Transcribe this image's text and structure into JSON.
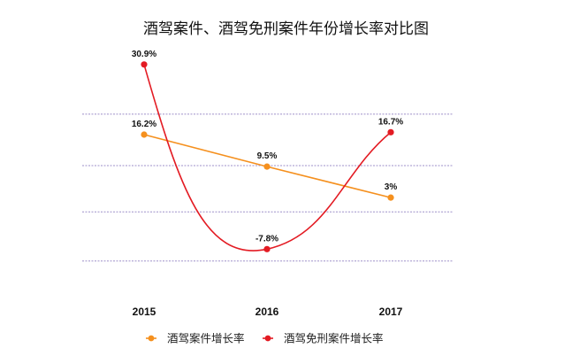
{
  "chart_data": {
    "type": "line",
    "title": "酒驾案件、酒驾免刑案件年份增长率对比图",
    "categories": [
      "2015",
      "2016",
      "2017"
    ],
    "xlabel": "",
    "ylabel": "",
    "ylim": [
      -15,
      40
    ],
    "grid": true,
    "legend_position": "bottom-center",
    "series": [
      {
        "name": "酒驾案件增长率",
        "values": [
          16.2,
          9.5,
          3
        ],
        "labels": [
          "16.2%",
          "9.5%",
          "3%"
        ],
        "color": "#F5901E",
        "smooth": false
      },
      {
        "name": "酒驾免刑案件增长率",
        "values": [
          30.9,
          -7.8,
          16.7
        ],
        "labels": [
          "30.9%",
          "-7.8%",
          "16.7%"
        ],
        "color": "#E31B23",
        "smooth": true
      }
    ]
  },
  "colors": {
    "grid": "#9E8FC9",
    "text": "#111111"
  }
}
